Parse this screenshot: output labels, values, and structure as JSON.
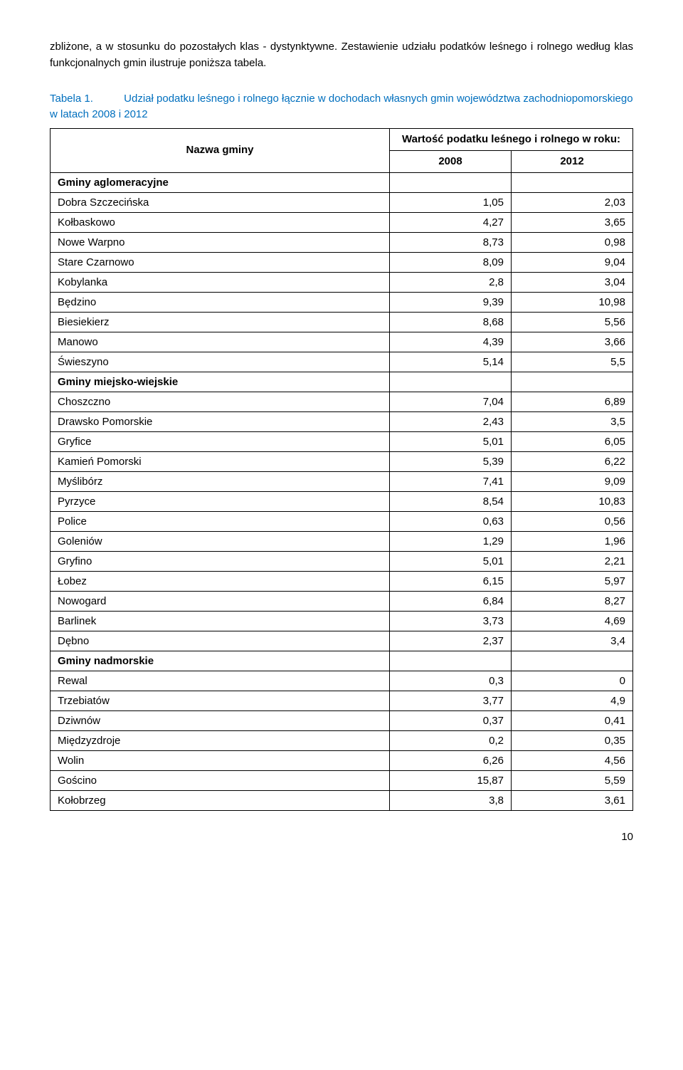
{
  "intro": "zbliżone, a w stosunku do pozostałych klas - dystynktywne. Zestawienie udziału podatków leśnego i rolnego według klas funkcjonalnych gmin ilustruje poniższa tabela.",
  "caption_label": "Tabela 1.",
  "caption_text": "Udział podatku leśnego i rolnego łącznie w dochodach własnych gmin województwa zachodniopomorskiego w latach 2008 i 2012",
  "header": {
    "name": "Nazwa gminy",
    "value_group": "Wartość podatku leśnego i rolnego w roku:",
    "y2008": "2008",
    "y2012": "2012"
  },
  "rows": [
    {
      "name": "Gminy aglomeracyjne",
      "section": true
    },
    {
      "name": "Dobra Szczecińska",
      "y2008": "1,05",
      "y2012": "2,03"
    },
    {
      "name": "Kołbaskowo",
      "y2008": "4,27",
      "y2012": "3,65"
    },
    {
      "name": "Nowe Warpno",
      "y2008": "8,73",
      "y2012": "0,98"
    },
    {
      "name": "Stare Czarnowo",
      "y2008": "8,09",
      "y2012": "9,04"
    },
    {
      "name": "Kobylanka",
      "y2008": "2,8",
      "y2012": "3,04"
    },
    {
      "name": "Będzino",
      "y2008": "9,39",
      "y2012": "10,98"
    },
    {
      "name": "Biesiekierz",
      "y2008": "8,68",
      "y2012": "5,56"
    },
    {
      "name": "Manowo",
      "y2008": "4,39",
      "y2012": "3,66"
    },
    {
      "name": "Świeszyno",
      "y2008": "5,14",
      "y2012": "5,5"
    },
    {
      "name": "Gminy miejsko-wiejskie",
      "section": true
    },
    {
      "name": "Choszczno",
      "y2008": "7,04",
      "y2012": "6,89"
    },
    {
      "name": "Drawsko Pomorskie",
      "y2008": "2,43",
      "y2012": "3,5"
    },
    {
      "name": "Gryfice",
      "y2008": "5,01",
      "y2012": "6,05"
    },
    {
      "name": "Kamień Pomorski",
      "y2008": "5,39",
      "y2012": "6,22"
    },
    {
      "name": "Myślibórz",
      "y2008": "7,41",
      "y2012": "9,09"
    },
    {
      "name": "Pyrzyce",
      "y2008": "8,54",
      "y2012": "10,83"
    },
    {
      "name": "Police",
      "y2008": "0,63",
      "y2012": "0,56"
    },
    {
      "name": "Goleniów",
      "y2008": "1,29",
      "y2012": "1,96"
    },
    {
      "name": "Gryfino",
      "y2008": "5,01",
      "y2012": "2,21"
    },
    {
      "name": "Łobez",
      "y2008": "6,15",
      "y2012": "5,97"
    },
    {
      "name": "Nowogard",
      "y2008": "6,84",
      "y2012": "8,27"
    },
    {
      "name": "Barlinek",
      "y2008": "3,73",
      "y2012": "4,69"
    },
    {
      "name": "Dębno",
      "y2008": "2,37",
      "y2012": "3,4"
    },
    {
      "name": "Gminy nadmorskie",
      "section": true
    },
    {
      "name": "Rewal",
      "y2008": "0,3",
      "y2012": "0"
    },
    {
      "name": "Trzebiatów",
      "y2008": "3,77",
      "y2012": "4,9"
    },
    {
      "name": "Dziwnów",
      "y2008": "0,37",
      "y2012": "0,41"
    },
    {
      "name": "Międzyzdroje",
      "y2008": "0,2",
      "y2012": "0,35"
    },
    {
      "name": "Wolin",
      "y2008": "6,26",
      "y2012": "4,56"
    },
    {
      "name": "Gościno",
      "y2008": "15,87",
      "y2012": "5,59"
    },
    {
      "name": "Kołobrzeg",
      "y2008": "3,8",
      "y2012": "3,61"
    }
  ],
  "page_number": "10"
}
